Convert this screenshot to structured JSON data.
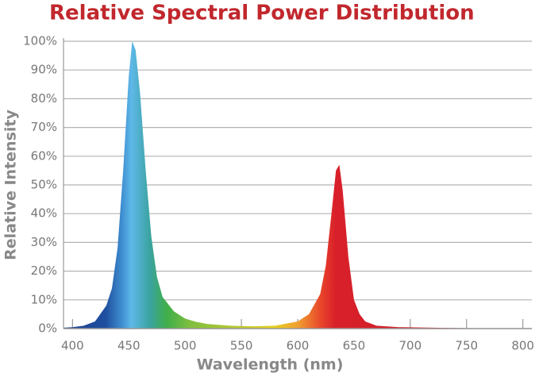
{
  "chart_data": {
    "type": "area",
    "title": "Relative Spectral Power Distribution",
    "x_label": "Wavelength (nm)",
    "y_label": "Relative Intensity",
    "x": [
      392,
      400,
      410,
      420,
      430,
      435,
      440,
      445,
      450,
      453,
      456,
      460,
      465,
      470,
      475,
      480,
      490,
      500,
      510,
      520,
      540,
      560,
      580,
      600,
      610,
      620,
      625,
      630,
      634,
      637,
      640,
      645,
      650,
      655,
      660,
      670,
      690,
      720,
      760,
      808
    ],
    "values": [
      0.3,
      0.5,
      1,
      2.5,
      8,
      14,
      28,
      55,
      88,
      100,
      97,
      82,
      55,
      32,
      18,
      11,
      6,
      3.5,
      2.3,
      1.6,
      1,
      0.8,
      1,
      2.5,
      5,
      12,
      22,
      40,
      55,
      57,
      48,
      25,
      10,
      5,
      2.5,
      1,
      0.5,
      0.3,
      0.1,
      0
    ],
    "xlim": [
      392,
      808
    ],
    "xticks": [
      400,
      450,
      500,
      550,
      600,
      650,
      700,
      750,
      800
    ],
    "ylim": [
      0,
      100
    ],
    "yticks": [
      {
        "value": 0,
        "label": "0%"
      },
      {
        "value": 10,
        "label": "10%"
      },
      {
        "value": 20,
        "label": "20%"
      },
      {
        "value": 30,
        "label": "30%"
      },
      {
        "value": 40,
        "label": "40%"
      },
      {
        "value": 50,
        "label": "50%"
      },
      {
        "value": 60,
        "label": "60%"
      },
      {
        "value": 70,
        "label": "70%"
      },
      {
        "value": 80,
        "label": "80%"
      },
      {
        "value": 90,
        "label": "90%"
      },
      {
        "value": 100,
        "label": "100%"
      }
    ],
    "grid": true
  }
}
